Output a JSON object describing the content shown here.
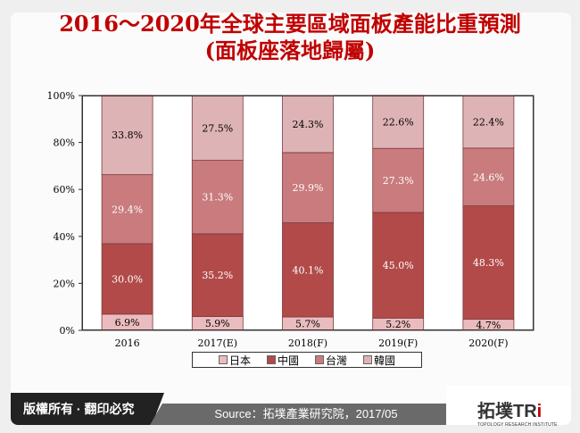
{
  "title_line1": "2016～2020年全球主要區域面板產能比重預測",
  "title_line2": "(面板座落地歸屬)",
  "chart_data": {
    "type": "bar",
    "stacked": true,
    "categories": [
      "2016",
      "2017(E)",
      "2018(F)",
      "2019(F)",
      "2020(F)"
    ],
    "series": [
      {
        "name": "日本",
        "color": "#ebbcbf",
        "label_color": "#000000",
        "values": [
          6.9,
          5.9,
          5.7,
          5.2,
          4.7
        ],
        "labels": [
          "6.9%",
          "5.9%",
          "5.7%",
          "5.2%",
          "4.7%"
        ]
      },
      {
        "name": "中國",
        "color": "#b24a4a",
        "label_color": "#ffffff",
        "values": [
          30.0,
          35.2,
          40.1,
          45.0,
          48.3
        ],
        "labels": [
          "30.0%",
          "35.2%",
          "40.1%",
          "45.0%",
          "48.3%"
        ]
      },
      {
        "name": "台灣",
        "color": "#c97b7d",
        "label_color": "#ffffff",
        "values": [
          29.4,
          31.3,
          29.9,
          27.3,
          24.6
        ],
        "labels": [
          "29.4%",
          "31.3%",
          "29.9%",
          "27.3%",
          "24.6%"
        ]
      },
      {
        "name": "韓國",
        "color": "#deb3b5",
        "label_color": "#000000",
        "values": [
          33.8,
          27.5,
          24.3,
          22.6,
          22.4
        ],
        "labels": [
          "33.8%",
          "27.5%",
          "24.3%",
          "22.6%",
          "22.4%"
        ]
      }
    ],
    "yticks": [
      "0%",
      "20%",
      "40%",
      "60%",
      "80%",
      "100%"
    ],
    "ylim": [
      0,
      100
    ],
    "grid": false,
    "legend_placement": "bottom"
  },
  "footer": {
    "copyright": "版權所有 · 翻印必究",
    "source": "Source：拓墣產業研究院，2017/05",
    "logo_text": "拓墣TRi",
    "logo_sub": "TOPOLOGY RESEARCH INSTITUTE"
  }
}
